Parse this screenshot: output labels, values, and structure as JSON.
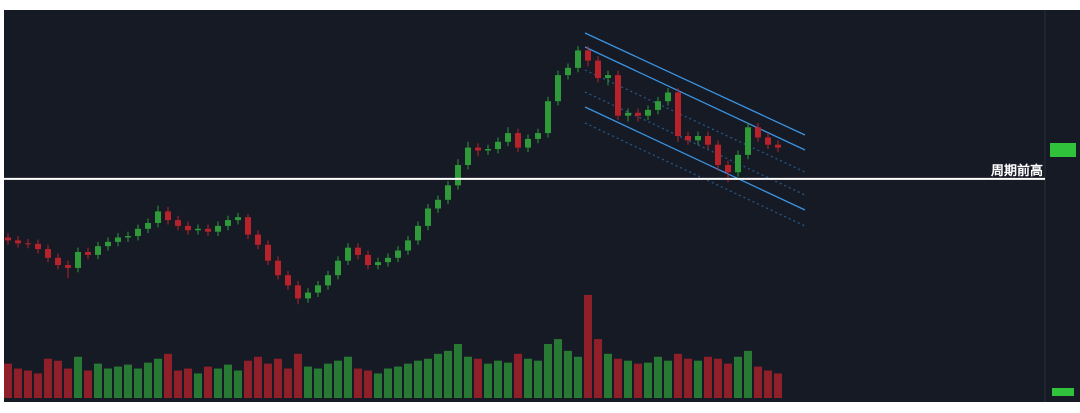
{
  "chart_data": {
    "type": "candlestick",
    "ylim": [
      0,
      100
    ],
    "open": [
      25,
      24,
      23,
      22.8,
      21,
      18,
      15.5,
      14.5,
      20,
      19,
      22,
      23.5,
      25,
      25.5,
      28,
      30,
      34,
      31,
      29,
      27.5,
      28,
      27,
      29,
      31,
      32,
      26,
      22.5,
      17,
      12,
      8.5,
      4,
      6,
      8.5,
      12,
      17,
      21.5,
      19,
      15.5,
      16.5,
      18,
      20.5,
      24,
      29,
      35,
      38,
      43,
      50,
      56,
      55,
      55.5,
      58,
      61,
      56,
      59,
      61,
      72,
      81,
      83.5,
      89.5,
      86,
      80,
      81,
      67,
      68,
      67,
      69,
      72,
      75,
      60,
      58.5,
      60,
      57,
      50,
      47.5,
      53.5,
      63,
      59.5,
      57
    ],
    "high": [
      26.5,
      25.5,
      24.5,
      24.3,
      22.5,
      19.5,
      17,
      21.5,
      21.5,
      23.5,
      25,
      26.5,
      27,
      29.5,
      31.5,
      36,
      35.5,
      32.5,
      30.5,
      29.5,
      29.5,
      30.5,
      32.5,
      33.5,
      33,
      27.5,
      24,
      18.5,
      13.5,
      10,
      7.5,
      10,
      13.5,
      18.5,
      23,
      23,
      20.5,
      18,
      19.5,
      22,
      25.5,
      30.5,
      36.5,
      39.5,
      44.5,
      52,
      58,
      57.5,
      57,
      59.5,
      63,
      62.5,
      60.5,
      62.5,
      73.5,
      82.5,
      85,
      91,
      91,
      87.5,
      82.5,
      82.5,
      69.5,
      69.5,
      70.5,
      73.5,
      76.5,
      76.5,
      61.5,
      61.5,
      61.5,
      58.5,
      51.5,
      55,
      64.5,
      64.5,
      61,
      58.5
    ],
    "low": [
      22.5,
      21.5,
      21.3,
      19.5,
      16.5,
      14,
      11,
      13,
      17.5,
      17.5,
      20.5,
      22,
      23.5,
      24,
      26.5,
      28.5,
      29.5,
      27.5,
      26,
      26,
      25.5,
      25.5,
      27.5,
      29.5,
      24.5,
      21,
      15.5,
      10.5,
      7,
      2,
      2.5,
      4.5,
      7,
      10.5,
      15.5,
      17.5,
      14,
      14,
      15,
      16.5,
      19,
      22.5,
      27.5,
      33.5,
      36.5,
      41.5,
      48.5,
      53,
      53.5,
      54,
      56.5,
      54.5,
      54.5,
      57.5,
      59.5,
      70.5,
      79.5,
      82,
      84,
      78.5,
      77.5,
      65.5,
      65,
      65,
      65.5,
      67.5,
      70.5,
      58,
      57,
      57,
      55.5,
      48,
      44,
      46,
      52,
      58,
      55.5,
      54.5
    ],
    "close": [
      24,
      23,
      22.8,
      21,
      18,
      15.5,
      14.5,
      20,
      19,
      22,
      23.5,
      25,
      25.5,
      28,
      30,
      34,
      31,
      29,
      27.5,
      28,
      27,
      29,
      31,
      32,
      26,
      22.5,
      17,
      12,
      8.5,
      4,
      6,
      8.5,
      12,
      17,
      21.5,
      19,
      15.5,
      16.5,
      18,
      20.5,
      24,
      29,
      35,
      38,
      43,
      50,
      56,
      55,
      55.5,
      58,
      61,
      56,
      59,
      61,
      72,
      81,
      83.5,
      89.5,
      86,
      80,
      81,
      67,
      68,
      67,
      69,
      72,
      75,
      60,
      58.5,
      60,
      57,
      50,
      47.5,
      53.5,
      63,
      59.5,
      57,
      56
    ],
    "volume": [
      35,
      30,
      28,
      25,
      40,
      38,
      30,
      42,
      28,
      35,
      30,
      32,
      34,
      30,
      36,
      40,
      45,
      28,
      30,
      25,
      32,
      30,
      34,
      28,
      38,
      42,
      35,
      40,
      30,
      45,
      32,
      30,
      35,
      38,
      42,
      30,
      28,
      25,
      30,
      32,
      35,
      38,
      40,
      45,
      48,
      55,
      42,
      40,
      35,
      38,
      36,
      45,
      40,
      38,
      55,
      60,
      48,
      42,
      105,
      60,
      45,
      40,
      38,
      35,
      36,
      42,
      38,
      45,
      40,
      38,
      42,
      40,
      35,
      42,
      48,
      32,
      28,
      25
    ],
    "volume_lim": [
      0,
      110
    ],
    "up_color": "#2f9a3a",
    "down_color": "#b8222b",
    "annotation": {
      "label": "周期前高",
      "value": 45.2
    }
  }
}
